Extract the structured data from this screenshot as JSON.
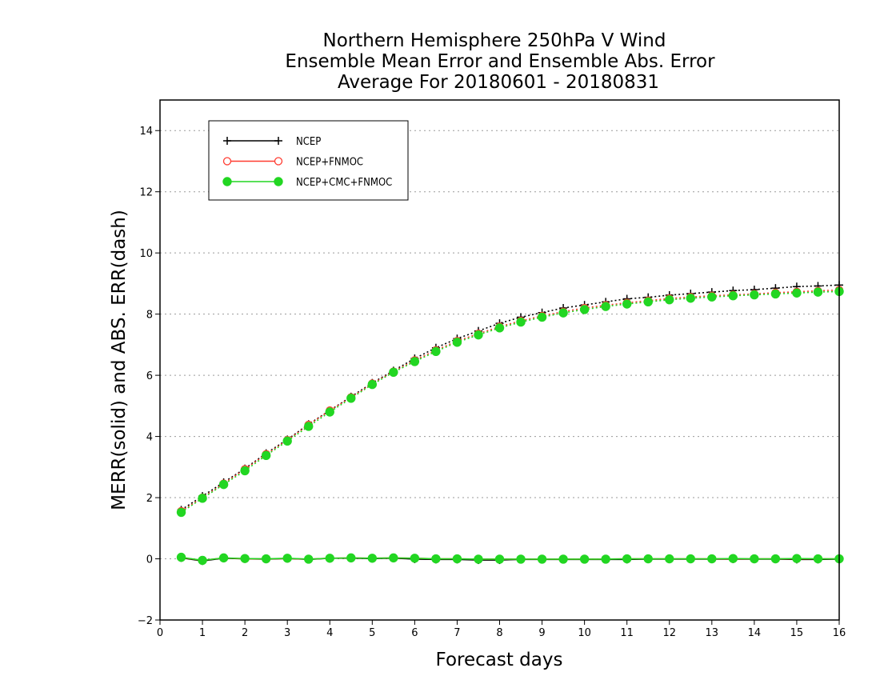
{
  "chart_data": {
    "type": "line",
    "title": [
      "Northern Hemisphere 250hPa V Wind",
      "Ensemble Mean Error and Ensemble Abs. Error",
      "Average For 20180601 - 20180831"
    ],
    "xlabel": "Forecast days",
    "ylabel": "MERR(solid) and ABS. ERR(dash)",
    "xlim": [
      0,
      16
    ],
    "ylim": [
      -2,
      15
    ],
    "xticks": [
      0,
      1,
      2,
      3,
      4,
      5,
      6,
      7,
      8,
      9,
      10,
      11,
      12,
      13,
      14,
      15,
      16
    ],
    "yticks": [
      -2,
      0,
      2,
      4,
      6,
      8,
      10,
      12,
      14
    ],
    "grid": "horizontal dotted",
    "legend_position": "top-left",
    "x": [
      0.5,
      1,
      1.5,
      2,
      2.5,
      3,
      3.5,
      4,
      4.5,
      5,
      5.5,
      6,
      6.5,
      7,
      7.5,
      8,
      8.5,
      9,
      9.5,
      10,
      10.5,
      11,
      11.5,
      12,
      12.5,
      13,
      13.5,
      14,
      14.5,
      15,
      15.5,
      16
    ],
    "series": [
      {
        "name": "NCEP",
        "color": "#000000",
        "marker": "plus",
        "mean_error": [
          0.03,
          -0.07,
          0.02,
          0.0,
          -0.01,
          0.01,
          -0.02,
          0.02,
          0.02,
          0.01,
          0.02,
          -0.01,
          -0.02,
          -0.02,
          -0.04,
          -0.04,
          -0.02,
          -0.02,
          -0.02,
          -0.02,
          -0.02,
          -0.02,
          -0.01,
          -0.01,
          -0.01,
          -0.01,
          -0.01,
          -0.01,
          -0.01,
          -0.02,
          -0.02,
          -0.01
        ],
        "abs_error": [
          1.6,
          2.05,
          2.5,
          2.95,
          3.45,
          3.9,
          4.4,
          4.85,
          5.3,
          5.75,
          6.15,
          6.55,
          6.9,
          7.2,
          7.45,
          7.7,
          7.9,
          8.05,
          8.2,
          8.3,
          8.4,
          8.5,
          8.55,
          8.62,
          8.67,
          8.72,
          8.77,
          8.8,
          8.85,
          8.9,
          8.92,
          8.95
        ]
      },
      {
        "name": "NCEP+FNMOC",
        "color": "#ff3b30",
        "marker": "open-circle",
        "mean_error": [
          0.04,
          -0.05,
          0.03,
          0.0,
          0.0,
          0.01,
          -0.01,
          0.02,
          0.03,
          0.02,
          0.03,
          0.02,
          0.0,
          0.0,
          -0.01,
          -0.01,
          -0.01,
          -0.01,
          -0.01,
          -0.01,
          -0.01,
          0.0,
          0.0,
          0.0,
          0.0,
          0.0,
          0.0,
          0.0,
          0.0,
          0.0,
          0.0,
          0.0
        ],
        "abs_error": [
          1.56,
          2.0,
          2.46,
          2.93,
          3.42,
          3.88,
          4.38,
          4.85,
          5.28,
          5.73,
          6.12,
          6.49,
          6.82,
          7.12,
          7.36,
          7.59,
          7.78,
          7.94,
          8.08,
          8.2,
          8.29,
          8.37,
          8.44,
          8.51,
          8.56,
          8.6,
          8.63,
          8.66,
          8.7,
          8.73,
          8.76,
          8.79
        ]
      },
      {
        "name": "NCEP+CMC+FNMOC",
        "color": "#22d622",
        "marker": "filled-circle",
        "mean_error": [
          0.05,
          -0.05,
          0.03,
          0.01,
          0.0,
          0.02,
          -0.01,
          0.02,
          0.03,
          0.02,
          0.03,
          0.02,
          0.0,
          0.0,
          -0.01,
          -0.01,
          -0.01,
          -0.01,
          -0.01,
          -0.01,
          -0.01,
          0.0,
          0.0,
          0.0,
          0.0,
          0.0,
          0.01,
          0.0,
          0.0,
          0.01,
          0.0,
          0.0
        ],
        "abs_error": [
          1.52,
          1.98,
          2.43,
          2.88,
          3.38,
          3.85,
          4.33,
          4.8,
          5.25,
          5.7,
          6.1,
          6.45,
          6.78,
          7.08,
          7.32,
          7.55,
          7.74,
          7.9,
          8.04,
          8.15,
          8.25,
          8.33,
          8.4,
          8.47,
          8.52,
          8.56,
          8.6,
          8.63,
          8.66,
          8.69,
          8.72,
          8.74
        ]
      }
    ]
  }
}
